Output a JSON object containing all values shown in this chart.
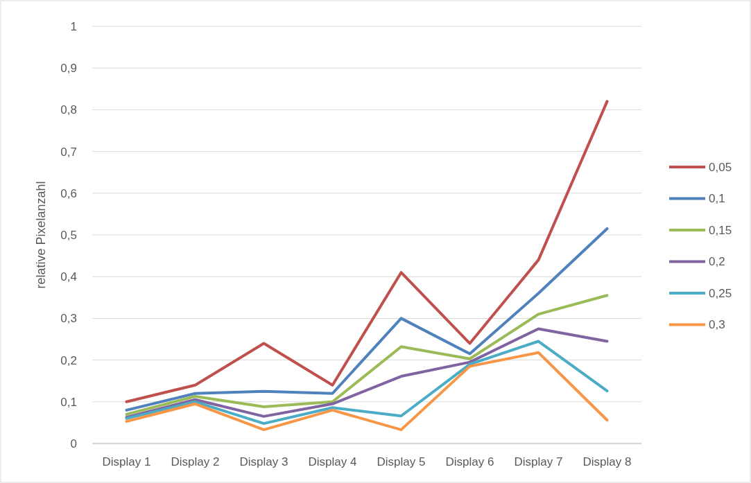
{
  "chart_data": {
    "type": "line",
    "ylabel": "relative Pixelanzahl",
    "categories": [
      "Display 1",
      "Display 2",
      "Display 3",
      "Display 4",
      "Display 5",
      "Display 6",
      "Display 7",
      "Display 8"
    ],
    "series": [
      {
        "name": "0,05",
        "color": "#c0504d",
        "values": [
          0.1,
          0.14,
          0.24,
          0.14,
          0.41,
          0.24,
          0.44,
          0.82
        ]
      },
      {
        "name": "0,1",
        "color": "#4f81bd",
        "values": [
          0.08,
          0.12,
          0.125,
          0.12,
          0.3,
          0.215,
          0.36,
          0.515
        ]
      },
      {
        "name": "0,15",
        "color": "#9bbb59",
        "values": [
          0.07,
          0.113,
          0.088,
          0.1,
          0.232,
          0.203,
          0.31,
          0.355
        ]
      },
      {
        "name": "0,2",
        "color": "#8064a2",
        "values": [
          0.063,
          0.105,
          0.065,
          0.095,
          0.161,
          0.195,
          0.275,
          0.245
        ]
      },
      {
        "name": "0,25",
        "color": "#4bacc6",
        "values": [
          0.06,
          0.1,
          0.048,
          0.086,
          0.066,
          0.19,
          0.245,
          0.126
        ]
      },
      {
        "name": "0,3",
        "color": "#f79646",
        "values": [
          0.053,
          0.095,
          0.033,
          0.08,
          0.033,
          0.185,
          0.218,
          0.056
        ]
      }
    ],
    "ylim": [
      0,
      1
    ],
    "yticks": [
      {
        "value": 0,
        "label": "0"
      },
      {
        "value": 0.1,
        "label": "0,1"
      },
      {
        "value": 0.2,
        "label": "0,2"
      },
      {
        "value": 0.3,
        "label": "0,3"
      },
      {
        "value": 0.4,
        "label": "0,4"
      },
      {
        "value": 0.5,
        "label": "0,5"
      },
      {
        "value": 0.6,
        "label": "0,6"
      },
      {
        "value": 0.7,
        "label": "0,7"
      },
      {
        "value": 0.8,
        "label": "0,8"
      },
      {
        "value": 0.9,
        "label": "0,9"
      },
      {
        "value": 1,
        "label": "1"
      }
    ],
    "grid": "y",
    "legend": "right",
    "marker": "none",
    "line_style": "solid"
  }
}
